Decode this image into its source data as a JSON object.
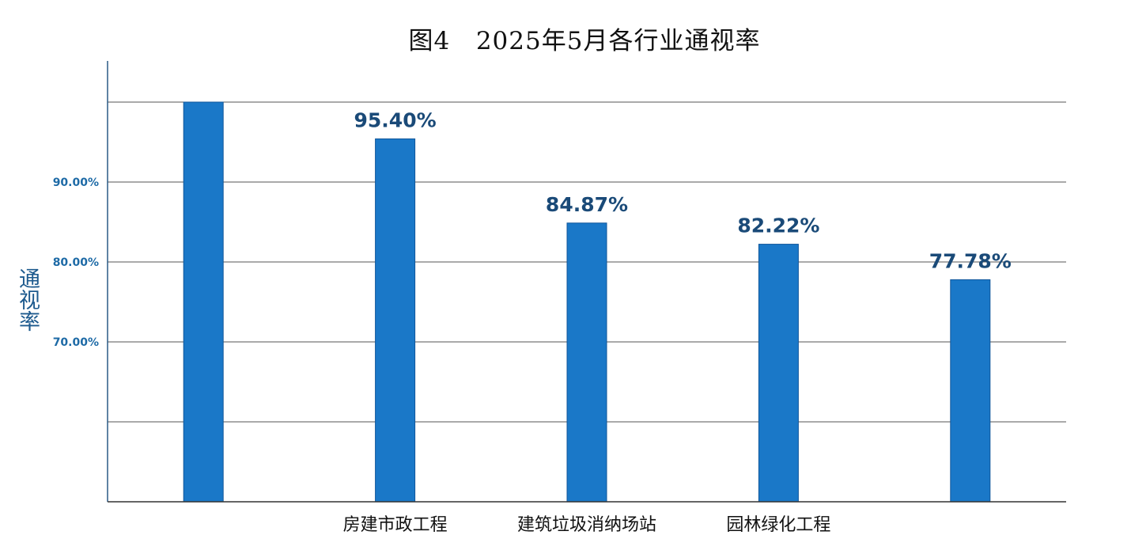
{
  "chart_data": {
    "type": "bar",
    "title": "图4   2025年5月各行业通视率",
    "ylabel": "通视率",
    "xlabel": "",
    "categories": [
      "",
      "房建市政工程",
      "建筑垃圾消纳场站",
      "园林绿化工程",
      ""
    ],
    "values": [
      100.0,
      95.4,
      84.87,
      82.22,
      77.78
    ],
    "data_labels": [
      "",
      "95.40%",
      "84.87%",
      "82.22%",
      "77.78%"
    ],
    "ylim": [
      50,
      100
    ],
    "yticks": [
      50,
      60,
      70,
      80,
      90,
      100
    ],
    "ytick_labels": [
      "",
      "",
      "70.00%",
      "80.00%",
      "90.00%",
      ""
    ],
    "grid": true,
    "legend": "none",
    "colors": {
      "bar": "#1a78c8",
      "bar_edge": "#10569a",
      "grid": "#555555",
      "axis": "#2a5a86"
    }
  }
}
